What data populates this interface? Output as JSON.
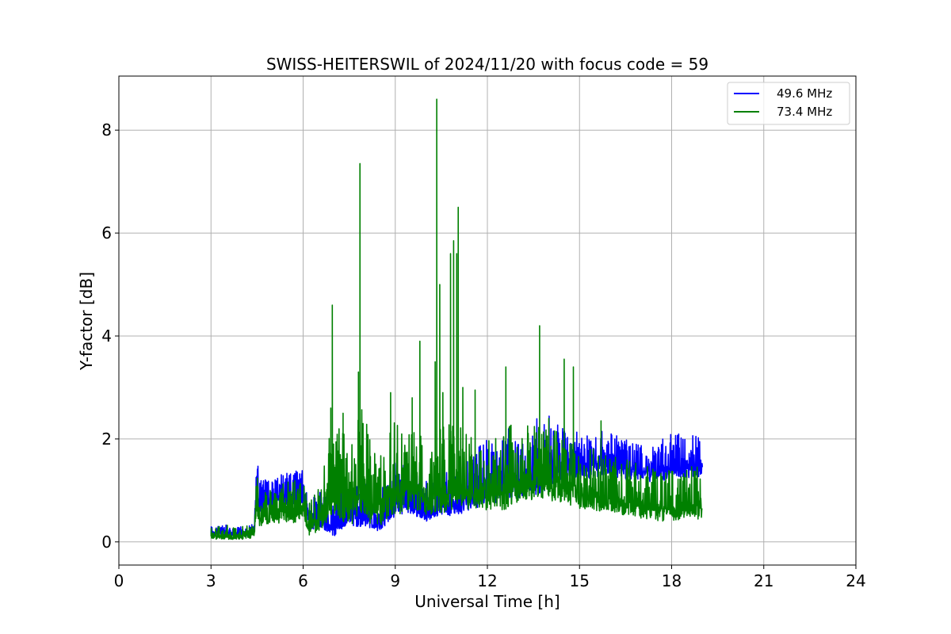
{
  "chart_data": {
    "type": "line",
    "title": "SWISS-HEITERSWIL of 2024/11/20 with focus code = 59",
    "xlabel": "Universal Time [h]",
    "ylabel": "Y-factor [dB]",
    "xlim": [
      0,
      24
    ],
    "ylim": [
      -0.45,
      9.05
    ],
    "xticks": [
      0,
      3,
      6,
      9,
      12,
      15,
      18,
      21,
      24
    ],
    "yticks": [
      0,
      2,
      4,
      6,
      8
    ],
    "grid": true,
    "legend_position": "top-right",
    "series": [
      {
        "name": "49.6 MHz",
        "color": "#0000ff",
        "x": [
          3.0,
          3.5,
          4.0,
          4.4,
          4.5,
          4.55,
          4.6,
          5.0,
          5.5,
          6.0,
          6.1,
          6.2,
          6.5,
          7.0,
          7.5,
          8.0,
          8.5,
          9.0,
          9.5,
          10.0,
          10.5,
          11.0,
          11.5,
          12.0,
          12.5,
          13.0,
          13.5,
          14.0,
          14.5,
          15.0,
          15.5,
          16.0,
          16.5,
          17.0,
          17.5,
          18.0,
          18.5,
          19.0
        ],
        "y": [
          0.2,
          0.22,
          0.2,
          0.25,
          1.5,
          1.0,
          0.9,
          1.05,
          1.1,
          1.2,
          0.8,
          0.55,
          0.65,
          0.55,
          0.85,
          0.7,
          0.5,
          0.95,
          1.1,
          0.8,
          0.85,
          0.9,
          1.1,
          1.2,
          1.3,
          1.3,
          1.45,
          1.55,
          1.7,
          1.75,
          1.7,
          1.75,
          1.6,
          1.55,
          1.55,
          1.7,
          1.7,
          1.6
        ],
        "lo": [
          0.1,
          0.12,
          0.1,
          0.12,
          1.0,
          0.6,
          0.55,
          0.6,
          0.7,
          0.7,
          0.5,
          0.2,
          0.3,
          0.1,
          0.3,
          0.3,
          0.2,
          0.5,
          0.55,
          0.4,
          0.5,
          0.5,
          0.65,
          0.7,
          0.8,
          0.85,
          0.9,
          1.0,
          1.15,
          1.2,
          1.25,
          1.3,
          1.2,
          1.2,
          1.15,
          1.2,
          1.25,
          1.2
        ],
        "hi": [
          0.3,
          0.33,
          0.3,
          0.35,
          1.75,
          1.3,
          1.2,
          1.25,
          1.35,
          1.45,
          1.0,
          0.8,
          1.0,
          0.9,
          1.15,
          1.2,
          0.95,
          1.55,
          1.6,
          1.3,
          1.4,
          1.5,
          1.8,
          2.0,
          2.2,
          2.2,
          2.4,
          2.6,
          2.2,
          2.2,
          2.15,
          2.15,
          2.0,
          1.9,
          1.95,
          2.1,
          2.1,
          2.05
        ]
      },
      {
        "name": "73.4 MHz",
        "color": "#008000",
        "x": [
          3.0,
          3.5,
          4.0,
          4.4,
          4.5,
          4.55,
          4.6,
          5.0,
          5.5,
          6.0,
          6.1,
          6.2,
          6.5,
          6.9,
          7.2,
          7.6,
          7.85,
          8.2,
          8.5,
          8.8,
          9.2,
          9.5,
          9.8,
          10.0,
          10.3,
          10.5,
          10.8,
          11.0,
          11.3,
          11.6,
          12.0,
          12.5,
          12.8,
          13.2,
          13.65,
          14.0,
          14.5,
          15.0,
          15.5,
          16.0,
          16.5,
          17.0,
          17.5,
          18.0,
          18.5,
          19.0
        ],
        "y": [
          0.15,
          0.15,
          0.15,
          0.18,
          0.9,
          0.5,
          0.5,
          0.65,
          0.7,
          0.75,
          0.55,
          0.45,
          0.55,
          1.3,
          1.1,
          1.0,
          1.5,
          0.95,
          1.0,
          1.1,
          1.2,
          1.15,
          1.2,
          0.8,
          1.3,
          1.1,
          1.3,
          1.4,
          1.2,
          1.0,
          1.1,
          1.2,
          1.3,
          1.3,
          1.45,
          1.3,
          1.25,
          1.1,
          1.05,
          0.95,
          0.9,
          0.85,
          0.8,
          0.8,
          0.85,
          0.8
        ],
        "lo": [
          0.05,
          0.05,
          0.05,
          0.08,
          0.55,
          0.3,
          0.3,
          0.35,
          0.35,
          0.4,
          0.3,
          0.1,
          0.2,
          0.45,
          0.4,
          0.35,
          0.6,
          0.3,
          0.3,
          0.5,
          0.55,
          0.6,
          0.6,
          0.5,
          0.55,
          0.55,
          0.6,
          0.7,
          0.6,
          0.6,
          0.6,
          0.6,
          0.7,
          0.75,
          0.85,
          0.8,
          0.75,
          0.65,
          0.6,
          0.6,
          0.5,
          0.45,
          0.4,
          0.4,
          0.45,
          0.4
        ],
        "hi": [
          0.3,
          0.35,
          0.3,
          0.35,
          1.4,
          0.9,
          0.9,
          1.1,
          1.2,
          1.2,
          0.95,
          0.8,
          1.2,
          2.5,
          2.2,
          2.2,
          2.8,
          2.0,
          1.9,
          2.3,
          2.4,
          2.3,
          2.2,
          1.5,
          2.3,
          2.2,
          2.4,
          2.3,
          2.2,
          1.9,
          2.0,
          2.1,
          2.3,
          2.3,
          2.3,
          2.2,
          2.1,
          1.9,
          1.8,
          1.7,
          1.6,
          1.5,
          1.45,
          1.45,
          1.5,
          1.45
        ],
        "spikes": [
          [
            6.9,
            2.6
          ],
          [
            6.95,
            4.6
          ],
          [
            7.3,
            2.5
          ],
          [
            7.8,
            3.3
          ],
          [
            7.85,
            7.35
          ],
          [
            8.85,
            2.9
          ],
          [
            9.55,
            2.8
          ],
          [
            9.8,
            3.9
          ],
          [
            10.3,
            3.5
          ],
          [
            10.35,
            8.6
          ],
          [
            10.45,
            5.0
          ],
          [
            10.55,
            2.9
          ],
          [
            10.8,
            5.6
          ],
          [
            10.9,
            5.85
          ],
          [
            11.0,
            5.6
          ],
          [
            11.05,
            6.5
          ],
          [
            11.2,
            3.0
          ],
          [
            11.6,
            2.95
          ],
          [
            12.6,
            3.4
          ],
          [
            13.7,
            4.2
          ],
          [
            14.0,
            2.4
          ],
          [
            14.5,
            3.55
          ],
          [
            14.8,
            3.4
          ],
          [
            15.7,
            2.35
          ]
        ]
      }
    ]
  }
}
